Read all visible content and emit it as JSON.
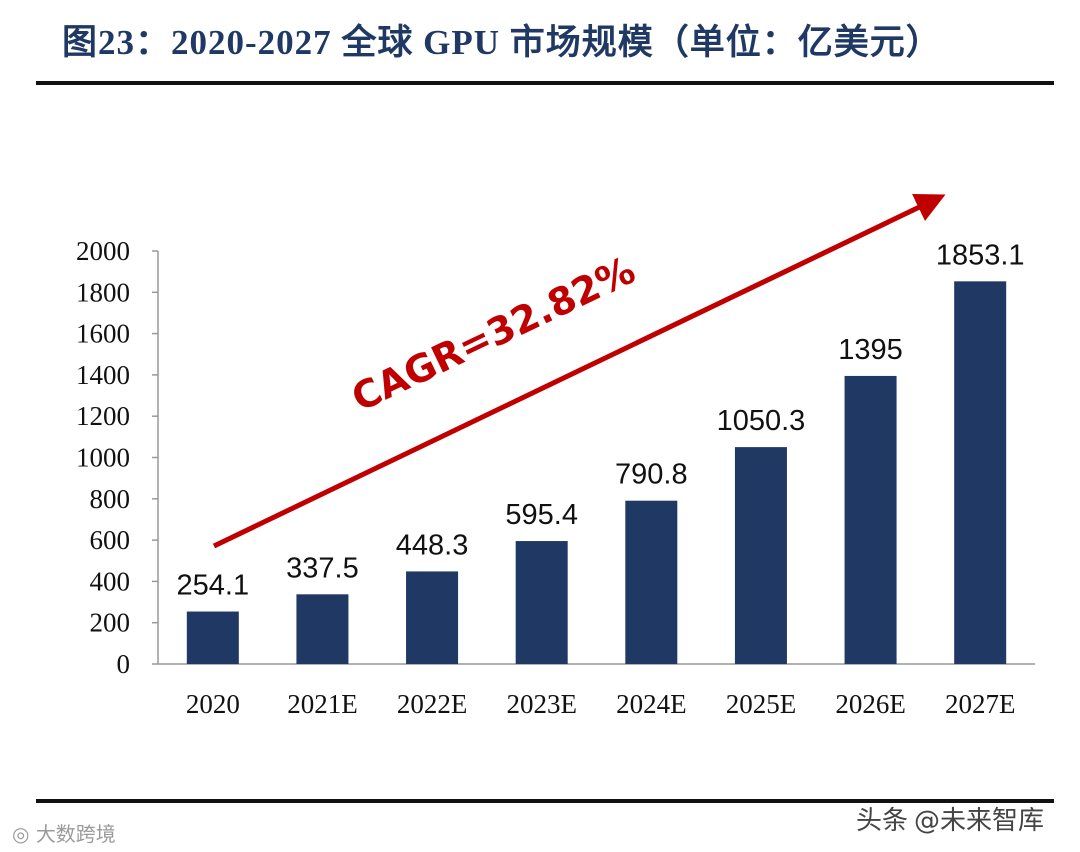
{
  "title": "图23：2020-2027 全球 GPU 市场规模（单位：亿美元）",
  "chart_data": {
    "type": "bar",
    "categories": [
      "2020",
      "2021E",
      "2022E",
      "2023E",
      "2024E",
      "2025E",
      "2026E",
      "2027E"
    ],
    "values": [
      254.1,
      337.5,
      448.3,
      595.4,
      790.8,
      1050.3,
      1395,
      1853.1
    ],
    "data_labels": [
      "254.1",
      "337.5",
      "448.3",
      "595.4",
      "790.8",
      "1050.3",
      "1395",
      "1853.1"
    ],
    "yticks": [
      0,
      200,
      400,
      600,
      800,
      1000,
      1200,
      1400,
      1600,
      1800,
      2000
    ],
    "ylim": [
      0,
      2000
    ],
    "grid": false,
    "bar_color": "#1f3864",
    "annotation": {
      "text": "CAGR=32.82%",
      "color": "#c00000"
    }
  },
  "watermarks": {
    "left": "大数跨境",
    "right_prefix": "头条",
    "right_name": "@未来智库"
  }
}
